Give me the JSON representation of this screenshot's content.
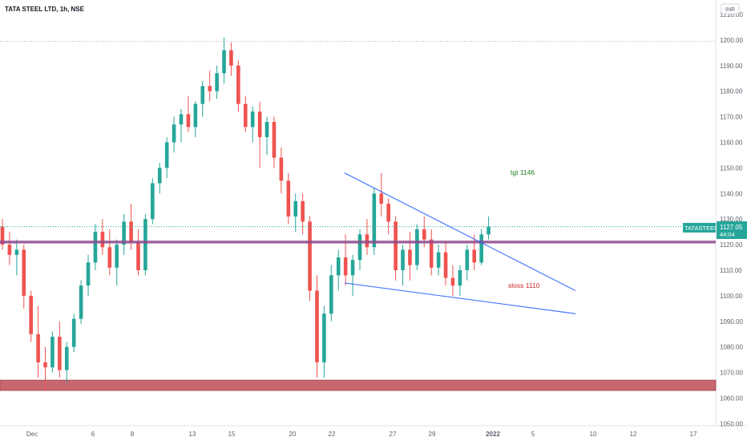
{
  "header": {
    "title": "TATA STEEL LTD, 1h, NSE"
  },
  "currency_badge": "INR",
  "price_tag": {
    "symbol": "TATASTEEL",
    "price": "1127.05",
    "countdown": "44:04"
  },
  "annotations": {
    "target": "tgt 1146",
    "stoploss": "sloss 1110"
  },
  "colors": {
    "up": "#26a69a",
    "down": "#ef5350",
    "trendline": "#2962ff",
    "support_zone": "#c2575f",
    "resistance_line": "#8e4a8e",
    "target_text": "#1b7a1b",
    "stoploss_text": "#c62828"
  },
  "chart_data": {
    "type": "candlestick",
    "symbol": "TATA STEEL LTD",
    "interval": "1h",
    "exchange": "NSE",
    "ylim": [
      1050,
      1213
    ],
    "y_ticks": [
      1050,
      1060,
      1070,
      1080,
      1090,
      1100,
      1110,
      1120,
      1130,
      1140,
      1150,
      1160,
      1170,
      1180,
      1190,
      1200,
      1210
    ],
    "y_tick_labels": [
      "1050.00",
      "1060.00",
      "1070.00",
      "1080.00",
      "1090.00",
      "1100.00",
      "1110.00",
      "1120.00",
      "1130.00",
      "1140.00",
      "1150.00",
      "1160.00",
      "1170.00",
      "1180.00",
      "1190.00",
      "1200.00",
      "1210.00"
    ],
    "x_tick_labels": [
      "Dec",
      "6",
      "8",
      "13",
      "15",
      "20",
      "22",
      "27",
      "29",
      "2022",
      "5",
      "10",
      "12",
      "17"
    ],
    "last_price": 1127.05,
    "horizontal_levels": {
      "resistance_line": 1121,
      "support_zone": [
        1063,
        1067
      ],
      "dotted_high": 1199.5
    },
    "trendlines": [
      {
        "name": "upper",
        "points": [
          [
            0,
            1148
          ],
          [
            72,
            1102
          ]
        ]
      },
      {
        "name": "lower",
        "points": [
          [
            0,
            1105
          ],
          [
            72,
            1093
          ]
        ]
      }
    ],
    "ohlc": [
      [
        1127,
        1130,
        1118,
        1120
      ],
      [
        1120,
        1125,
        1112,
        1116
      ],
      [
        1116,
        1122,
        1108,
        1118
      ],
      [
        1118,
        1120,
        1095,
        1100
      ],
      [
        1100,
        1102,
        1082,
        1085
      ],
      [
        1085,
        1096,
        1068,
        1074
      ],
      [
        1074,
        1080,
        1063,
        1072
      ],
      [
        1072,
        1086,
        1070,
        1084
      ],
      [
        1084,
        1090,
        1068,
        1071
      ],
      [
        1071,
        1082,
        1066,
        1080
      ],
      [
        1080,
        1093,
        1078,
        1091
      ],
      [
        1091,
        1106,
        1089,
        1104
      ],
      [
        1104,
        1116,
        1100,
        1113
      ],
      [
        1113,
        1128,
        1110,
        1125
      ],
      [
        1125,
        1130,
        1116,
        1119
      ],
      [
        1119,
        1126,
        1108,
        1111
      ],
      [
        1111,
        1122,
        1104,
        1120
      ],
      [
        1120,
        1132,
        1116,
        1129
      ],
      [
        1129,
        1136,
        1118,
        1121
      ],
      [
        1121,
        1126,
        1108,
        1110
      ],
      [
        1110,
        1132,
        1108,
        1130
      ],
      [
        1130,
        1146,
        1128,
        1144
      ],
      [
        1144,
        1152,
        1140,
        1150
      ],
      [
        1150,
        1162,
        1146,
        1160
      ],
      [
        1160,
        1170,
        1156,
        1167
      ],
      [
        1167,
        1173,
        1160,
        1171
      ],
      [
        1171,
        1178,
        1164,
        1166
      ],
      [
        1166,
        1176,
        1162,
        1175
      ],
      [
        1175,
        1184,
        1170,
        1182
      ],
      [
        1182,
        1188,
        1176,
        1180
      ],
      [
        1180,
        1190,
        1177,
        1187
      ],
      [
        1187,
        1201,
        1183,
        1196
      ],
      [
        1196,
        1199,
        1186,
        1190
      ],
      [
        1190,
        1192,
        1172,
        1175
      ],
      [
        1175,
        1178,
        1164,
        1166
      ],
      [
        1166,
        1174,
        1160,
        1172
      ],
      [
        1172,
        1176,
        1150,
        1162
      ],
      [
        1162,
        1170,
        1155,
        1168
      ],
      [
        1168,
        1170,
        1150,
        1154
      ],
      [
        1154,
        1158,
        1140,
        1145
      ],
      [
        1145,
        1148,
        1128,
        1131
      ],
      [
        1131,
        1140,
        1125,
        1137
      ],
      [
        1137,
        1140,
        1124,
        1129
      ],
      [
        1129,
        1131,
        1098,
        1102
      ],
      [
        1102,
        1108,
        1068,
        1074
      ],
      [
        1074,
        1096,
        1068,
        1093
      ],
      [
        1093,
        1112,
        1090,
        1108
      ],
      [
        1108,
        1118,
        1102,
        1115
      ],
      [
        1115,
        1124,
        1104,
        1108
      ],
      [
        1108,
        1116,
        1100,
        1114
      ],
      [
        1114,
        1126,
        1110,
        1124
      ],
      [
        1124,
        1130,
        1116,
        1119
      ],
      [
        1119,
        1142,
        1116,
        1140
      ],
      [
        1140,
        1148,
        1131,
        1136
      ],
      [
        1136,
        1138,
        1124,
        1129
      ],
      [
        1129,
        1131,
        1106,
        1110
      ],
      [
        1110,
        1120,
        1104,
        1118
      ],
      [
        1118,
        1125,
        1106,
        1112
      ],
      [
        1112,
        1128,
        1110,
        1126
      ],
      [
        1126,
        1131,
        1119,
        1122
      ],
      [
        1122,
        1126,
        1108,
        1111
      ],
      [
        1111,
        1120,
        1108,
        1117
      ],
      [
        1117,
        1121,
        1104,
        1107
      ],
      [
        1107,
        1112,
        1100,
        1104
      ],
      [
        1104,
        1112,
        1100,
        1110
      ],
      [
        1110,
        1120,
        1106,
        1118
      ],
      [
        1118,
        1124,
        1110,
        1113
      ],
      [
        1113,
        1126,
        1112,
        1124
      ],
      [
        1124,
        1131,
        1122,
        1127
      ]
    ]
  }
}
